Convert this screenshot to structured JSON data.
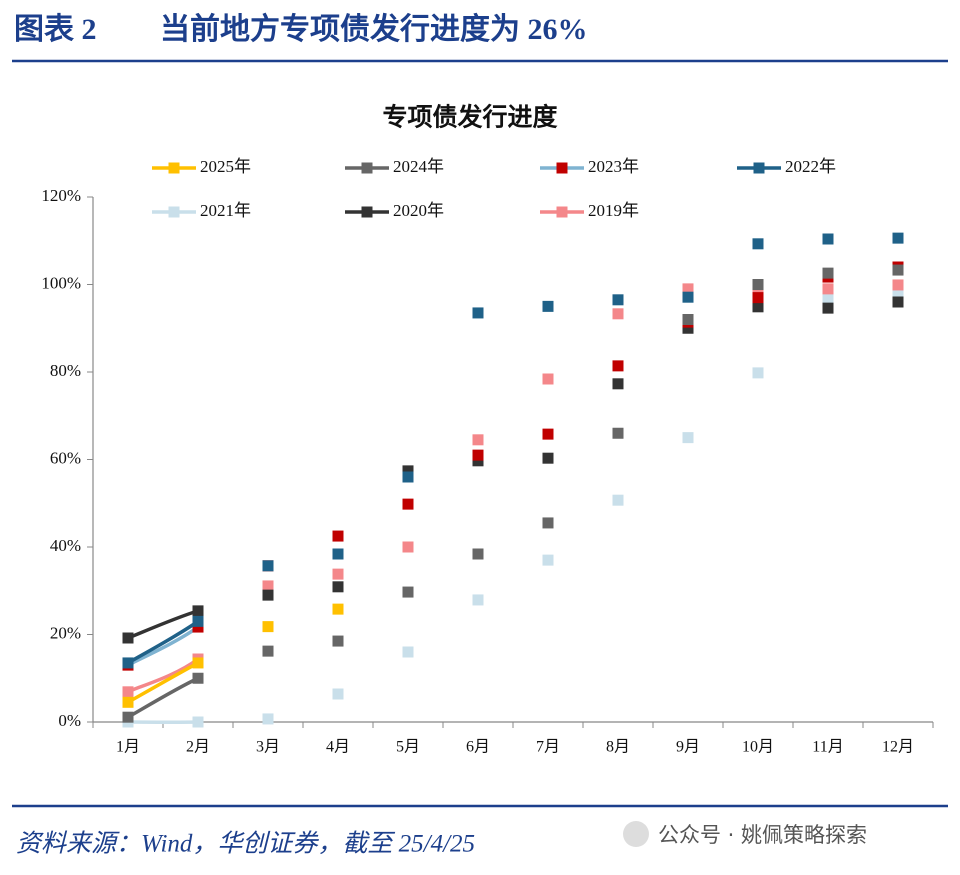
{
  "header": {
    "label": "图表 2",
    "title": "当前地方专项债发行进度为 26%"
  },
  "chart_data": {
    "type": "line",
    "title": "专项债发行进度",
    "categories": [
      "1月",
      "2月",
      "3月",
      "4月",
      "5月",
      "6月",
      "7月",
      "8月",
      "9月",
      "10月",
      "11月",
      "12月"
    ],
    "series": [
      {
        "name": "2025年",
        "color": "#ffc000",
        "values": [
          4.5,
          13.5,
          21.8,
          25.8,
          null,
          null,
          null,
          null,
          null,
          null,
          null,
          null
        ]
      },
      {
        "name": "2024年",
        "color": "#666666",
        "values": [
          1.1,
          10,
          16.2,
          18.5,
          29.7,
          38.4,
          45.5,
          66,
          92,
          100,
          102.6,
          103.3
        ]
      },
      {
        "name": "2023年",
        "color": "#7fb3d1",
        "marker_color": "#c00000",
        "values": [
          13,
          21.7,
          35.7,
          42.5,
          49.8,
          61,
          65.8,
          81.4,
          91.4,
          97,
          101.7,
          104
        ]
      },
      {
        "name": "2022年",
        "color": "#1f6188",
        "values": [
          13.5,
          23,
          35.7,
          38.4,
          56,
          93.5,
          95,
          96.5,
          97.1,
          109.3,
          110.4,
          110.6
        ]
      },
      {
        "name": "2021年",
        "color": "#c9dfea",
        "values": [
          0,
          0,
          0.7,
          6.4,
          16,
          27.9,
          37,
          50.7,
          65,
          79.8,
          97,
          98.3
        ]
      },
      {
        "name": "2020年",
        "color": "#333333",
        "values": [
          19.2,
          25.4,
          29,
          30.9,
          57.4,
          59.7,
          60.3,
          77.3,
          90,
          94.9,
          94.6,
          96
        ]
      },
      {
        "name": "2019年",
        "color": "#f4878a",
        "values": [
          6.9,
          14.4,
          31.1,
          33.8,
          40,
          64.5,
          78.4,
          93.3,
          99,
          98.5,
          99,
          99.9
        ]
      }
    ],
    "ylim": [
      0,
      120
    ],
    "yticks": [
      {
        "value": 0,
        "label": "0%"
      },
      {
        "value": 20,
        "label": "20%"
      },
      {
        "value": 40,
        "label": "40%"
      },
      {
        "value": 60,
        "label": "60%"
      },
      {
        "value": 80,
        "label": "80%"
      },
      {
        "value": 100,
        "label": "100%"
      },
      {
        "value": 120,
        "label": "120%"
      }
    ],
    "legend": "top"
  },
  "footer": {
    "source": "资料来源：Wind，华创证券，截至 25/4/25",
    "watermark": "公众号 · 姚佩策略探索"
  }
}
